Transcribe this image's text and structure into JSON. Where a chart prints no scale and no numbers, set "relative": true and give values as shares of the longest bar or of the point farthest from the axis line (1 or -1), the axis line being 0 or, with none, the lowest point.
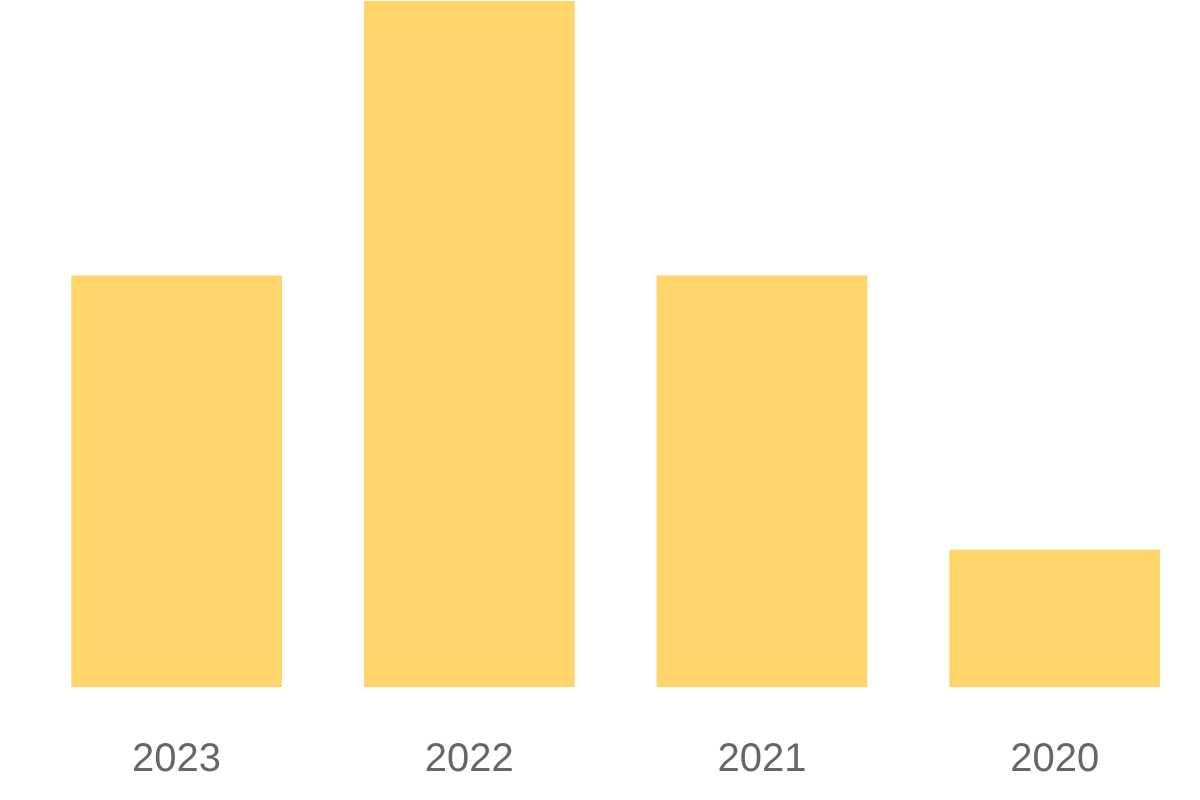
{
  "chart_data": {
    "type": "bar",
    "categories": [
      "2023",
      "2022",
      "2021",
      "2020"
    ],
    "values": [
      0.6,
      1,
      0.6,
      0.2
    ],
    "color": "#fed46b",
    "relative": true,
    "grid": false
  }
}
